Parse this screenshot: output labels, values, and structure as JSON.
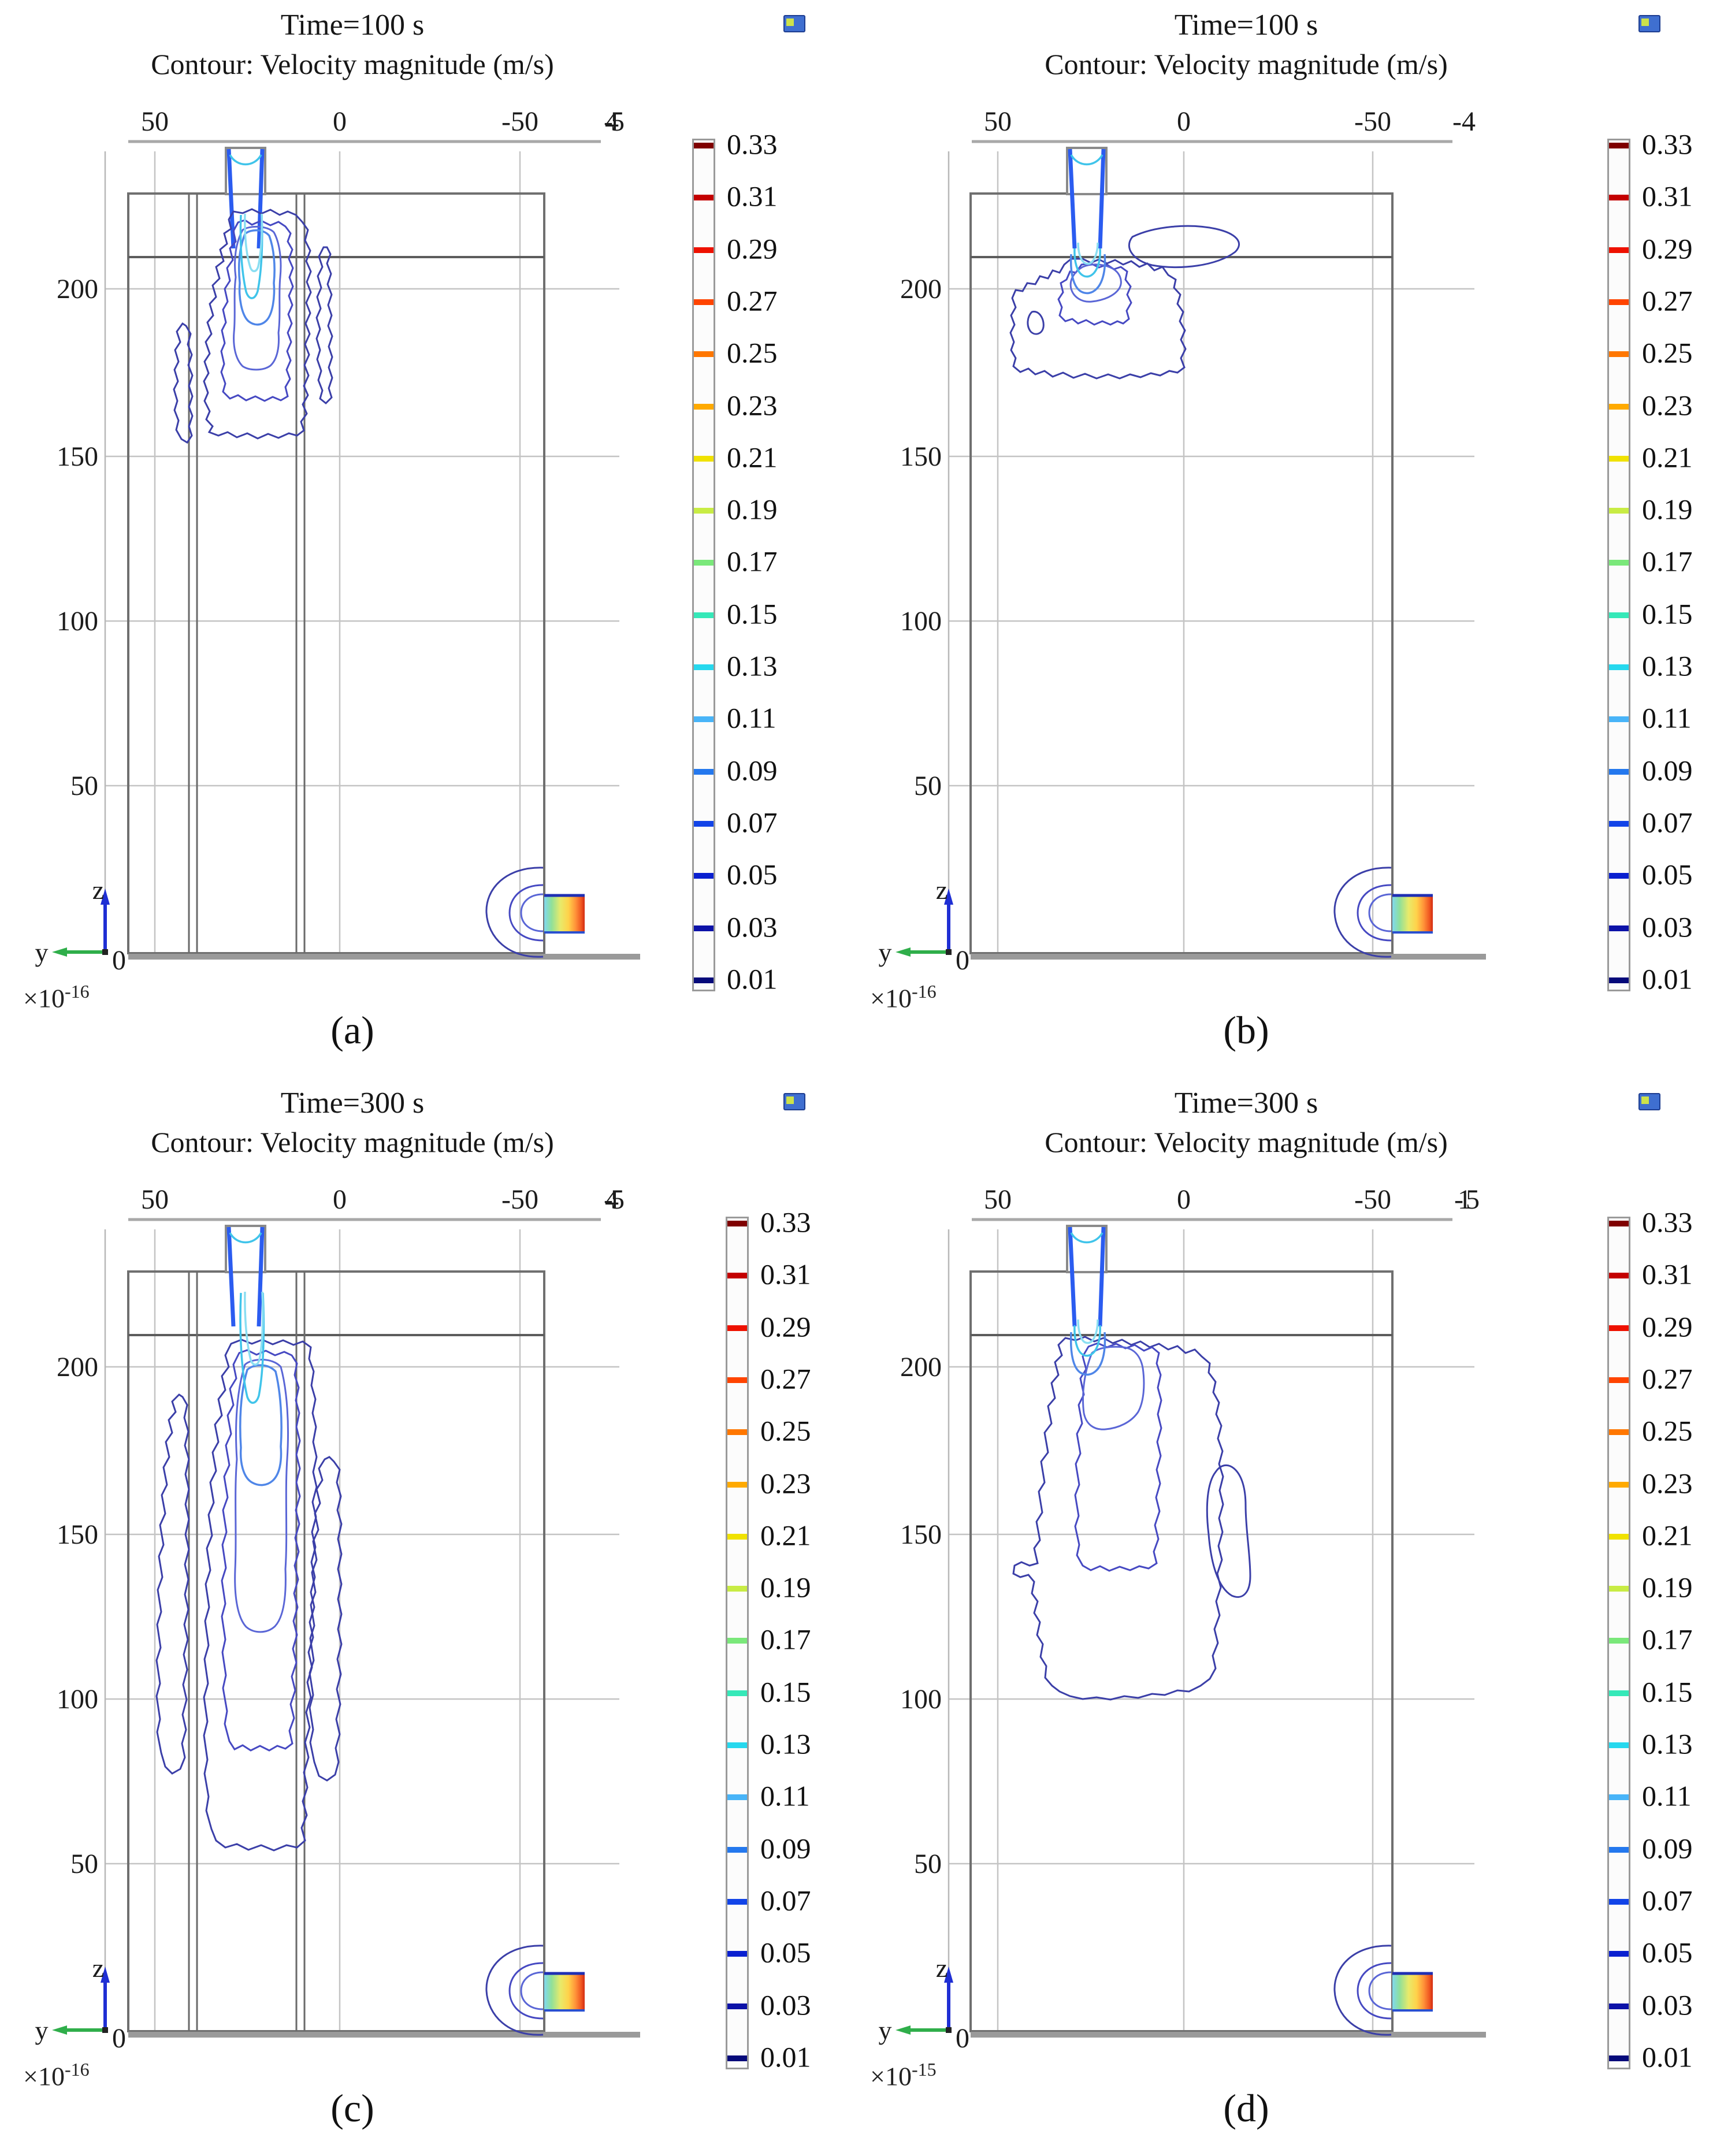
{
  "page": {
    "background": "#ffffff"
  },
  "colorbar": {
    "labels": [
      "0.33",
      "0.31",
      "0.29",
      "0.27",
      "0.25",
      "0.23",
      "0.21",
      "0.19",
      "0.17",
      "0.15",
      "0.13",
      "0.11",
      "0.09",
      "0.07",
      "0.05",
      "0.03",
      "0.01"
    ],
    "colors": [
      "#7f0000",
      "#c40000",
      "#ee1100",
      "#ff4400",
      "#ff7700",
      "#ffaa00",
      "#f0e200",
      "#c8ec44",
      "#7ae87a",
      "#35e8b8",
      "#26d8ee",
      "#48b4f8",
      "#2478ee",
      "#1244e8",
      "#0a20d0",
      "#0c12a8",
      "#050a7a"
    ]
  },
  "panels": [
    {
      "letter": "(a)",
      "title": "Time=100 s",
      "subtitle": "Contour: Velocity magnitude (m/s)",
      "x_ticks": [
        "50",
        "0",
        "-50"
      ],
      "x_end": "-45",
      "y_ticks": [
        "200",
        "150",
        "100",
        "50"
      ],
      "origin_tick": "0",
      "z_label": "z",
      "y_label": "y",
      "mult_base": "×10",
      "mult_exp": "-16"
    },
    {
      "letter": "(b)",
      "title": "Time=100 s",
      "subtitle": "Contour: Velocity magnitude (m/s)",
      "x_ticks": [
        "50",
        "0",
        "-50"
      ],
      "x_end": "-4",
      "y_ticks": [
        "200",
        "150",
        "100",
        "50"
      ],
      "origin_tick": "0",
      "z_label": "z",
      "y_label": "y",
      "mult_base": "×10",
      "mult_exp": "-16"
    },
    {
      "letter": "(c)",
      "title": "Time=300 s",
      "subtitle": "Contour: Velocity magnitude (m/s)",
      "x_ticks": [
        "50",
        "0",
        "-50"
      ],
      "x_end": "-45",
      "y_ticks": [
        "200",
        "150",
        "100",
        "50"
      ],
      "origin_tick": "0",
      "z_label": "z",
      "y_label": "y",
      "mult_base": "×10",
      "mult_exp": "-16"
    },
    {
      "letter": "(d)",
      "title": "Time=300 s",
      "subtitle": "Contour: Velocity magnitude (m/s)",
      "x_ticks": [
        "50",
        "0",
        "-50"
      ],
      "x_end": "-15",
      "y_ticks": [
        "200",
        "150",
        "100",
        "50"
      ],
      "origin_tick": "0",
      "z_label": "z",
      "y_label": "y",
      "mult_base": "×10",
      "mult_exp": "-15"
    }
  ],
  "chart_data": [
    {
      "type": "contour",
      "panel": "a",
      "title": "Time=100 s",
      "quantity": "Velocity magnitude",
      "unit": "m/s",
      "x_axis_ticks": [
        50,
        0,
        -50
      ],
      "x_axis_end_label": -45,
      "y_axis_ticks": [
        200,
        150,
        100,
        50,
        0
      ],
      "y_scale_factor": "1e-16",
      "levels_min": 0.01,
      "levels_max": 0.33,
      "levels_step": 0.02,
      "colormap": "rainbow",
      "legend_position": "right",
      "grid": true,
      "features": [
        "tank with two internal baffles",
        "inlet jet entering at top between baffles",
        "narrow contour plume from inlet down to z≈155",
        "thin fringe contours along both baffles",
        "recirculating outlet jet at bottom-right wall"
      ]
    },
    {
      "type": "contour",
      "panel": "b",
      "title": "Time=100 s",
      "quantity": "Velocity magnitude",
      "unit": "m/s",
      "x_axis_ticks": [
        50,
        0,
        -50
      ],
      "x_axis_end_label": -4,
      "y_axis_ticks": [
        200,
        150,
        100,
        50,
        0
      ],
      "y_scale_factor": "1e-16",
      "levels_min": 0.01,
      "levels_max": 0.33,
      "levels_step": 0.02,
      "colormap": "rainbow",
      "legend_position": "right",
      "grid": true,
      "features": [
        "tank without baffles",
        "inlet jet at top",
        "plume spreads laterally and reaches only z≈170",
        "detached contour lobe to the right just below the lid",
        "recirculating outlet jet at bottom-right wall"
      ]
    },
    {
      "type": "contour",
      "panel": "c",
      "title": "Time=300 s",
      "quantity": "Velocity magnitude",
      "unit": "m/s",
      "x_axis_ticks": [
        50,
        0,
        -50
      ],
      "x_axis_end_label": -45,
      "y_axis_ticks": [
        200,
        150,
        100,
        50,
        0
      ],
      "y_scale_factor": "1e-16",
      "levels_min": 0.01,
      "levels_max": 0.33,
      "levels_step": 0.02,
      "colormap": "rainbow",
      "legend_position": "right",
      "grid": true,
      "features": [
        "tank with two internal baffles",
        "central plume penetrates down to z≈55",
        "tall narrow recirculation lobe along left wall z≈210-75",
        "second tall lobe right of the baffles z≈205-75",
        "recirculating outlet jet at bottom-right wall"
      ]
    },
    {
      "type": "contour",
      "panel": "d",
      "title": "Time=300 s",
      "quantity": "Velocity magnitude",
      "unit": "m/s",
      "x_axis_ticks": [
        50,
        0,
        -50
      ],
      "x_axis_end_label": -15,
      "y_axis_ticks": [
        200,
        150,
        100,
        50,
        0
      ],
      "y_scale_factor": "1e-15",
      "levels_min": 0.01,
      "levels_max": 0.33,
      "levels_step": 0.02,
      "colormap": "rainbow",
      "legend_position": "right",
      "grid": true,
      "features": [
        "tank without baffles",
        "wide wiggly plume down to z≈100 with leftward hook at z≈140",
        "detached elongated contour blob near y≈0 at z≈160-135",
        "recirculating outlet jet at bottom-right wall"
      ]
    }
  ]
}
